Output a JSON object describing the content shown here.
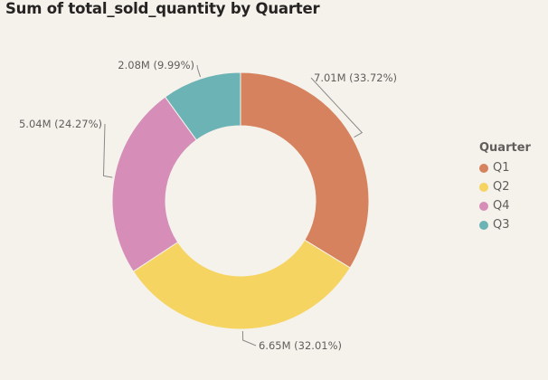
{
  "chart_data": {
    "type": "pie",
    "variant": "donut",
    "title": "Sum of total_sold_quantity by Quarter",
    "legend": {
      "title": "Quarter",
      "placement": "right"
    },
    "slices": [
      {
        "name": "Q1",
        "value": 7.01,
        "label": "7.01M (33.72%)",
        "percent": 33.72,
        "color": "#d6825e"
      },
      {
        "name": "Q2",
        "value": 6.65,
        "label": "6.65M (32.01%)",
        "percent": 32.01,
        "color": "#f5d462"
      },
      {
        "name": "Q4",
        "value": 5.04,
        "label": "5.04M (24.27%)",
        "percent": 24.27,
        "color": "#d68db8"
      },
      {
        "name": "Q3",
        "value": 2.08,
        "label": "2.08M (9.99%)",
        "percent": 9.99,
        "color": "#6bb3b4"
      }
    ]
  }
}
